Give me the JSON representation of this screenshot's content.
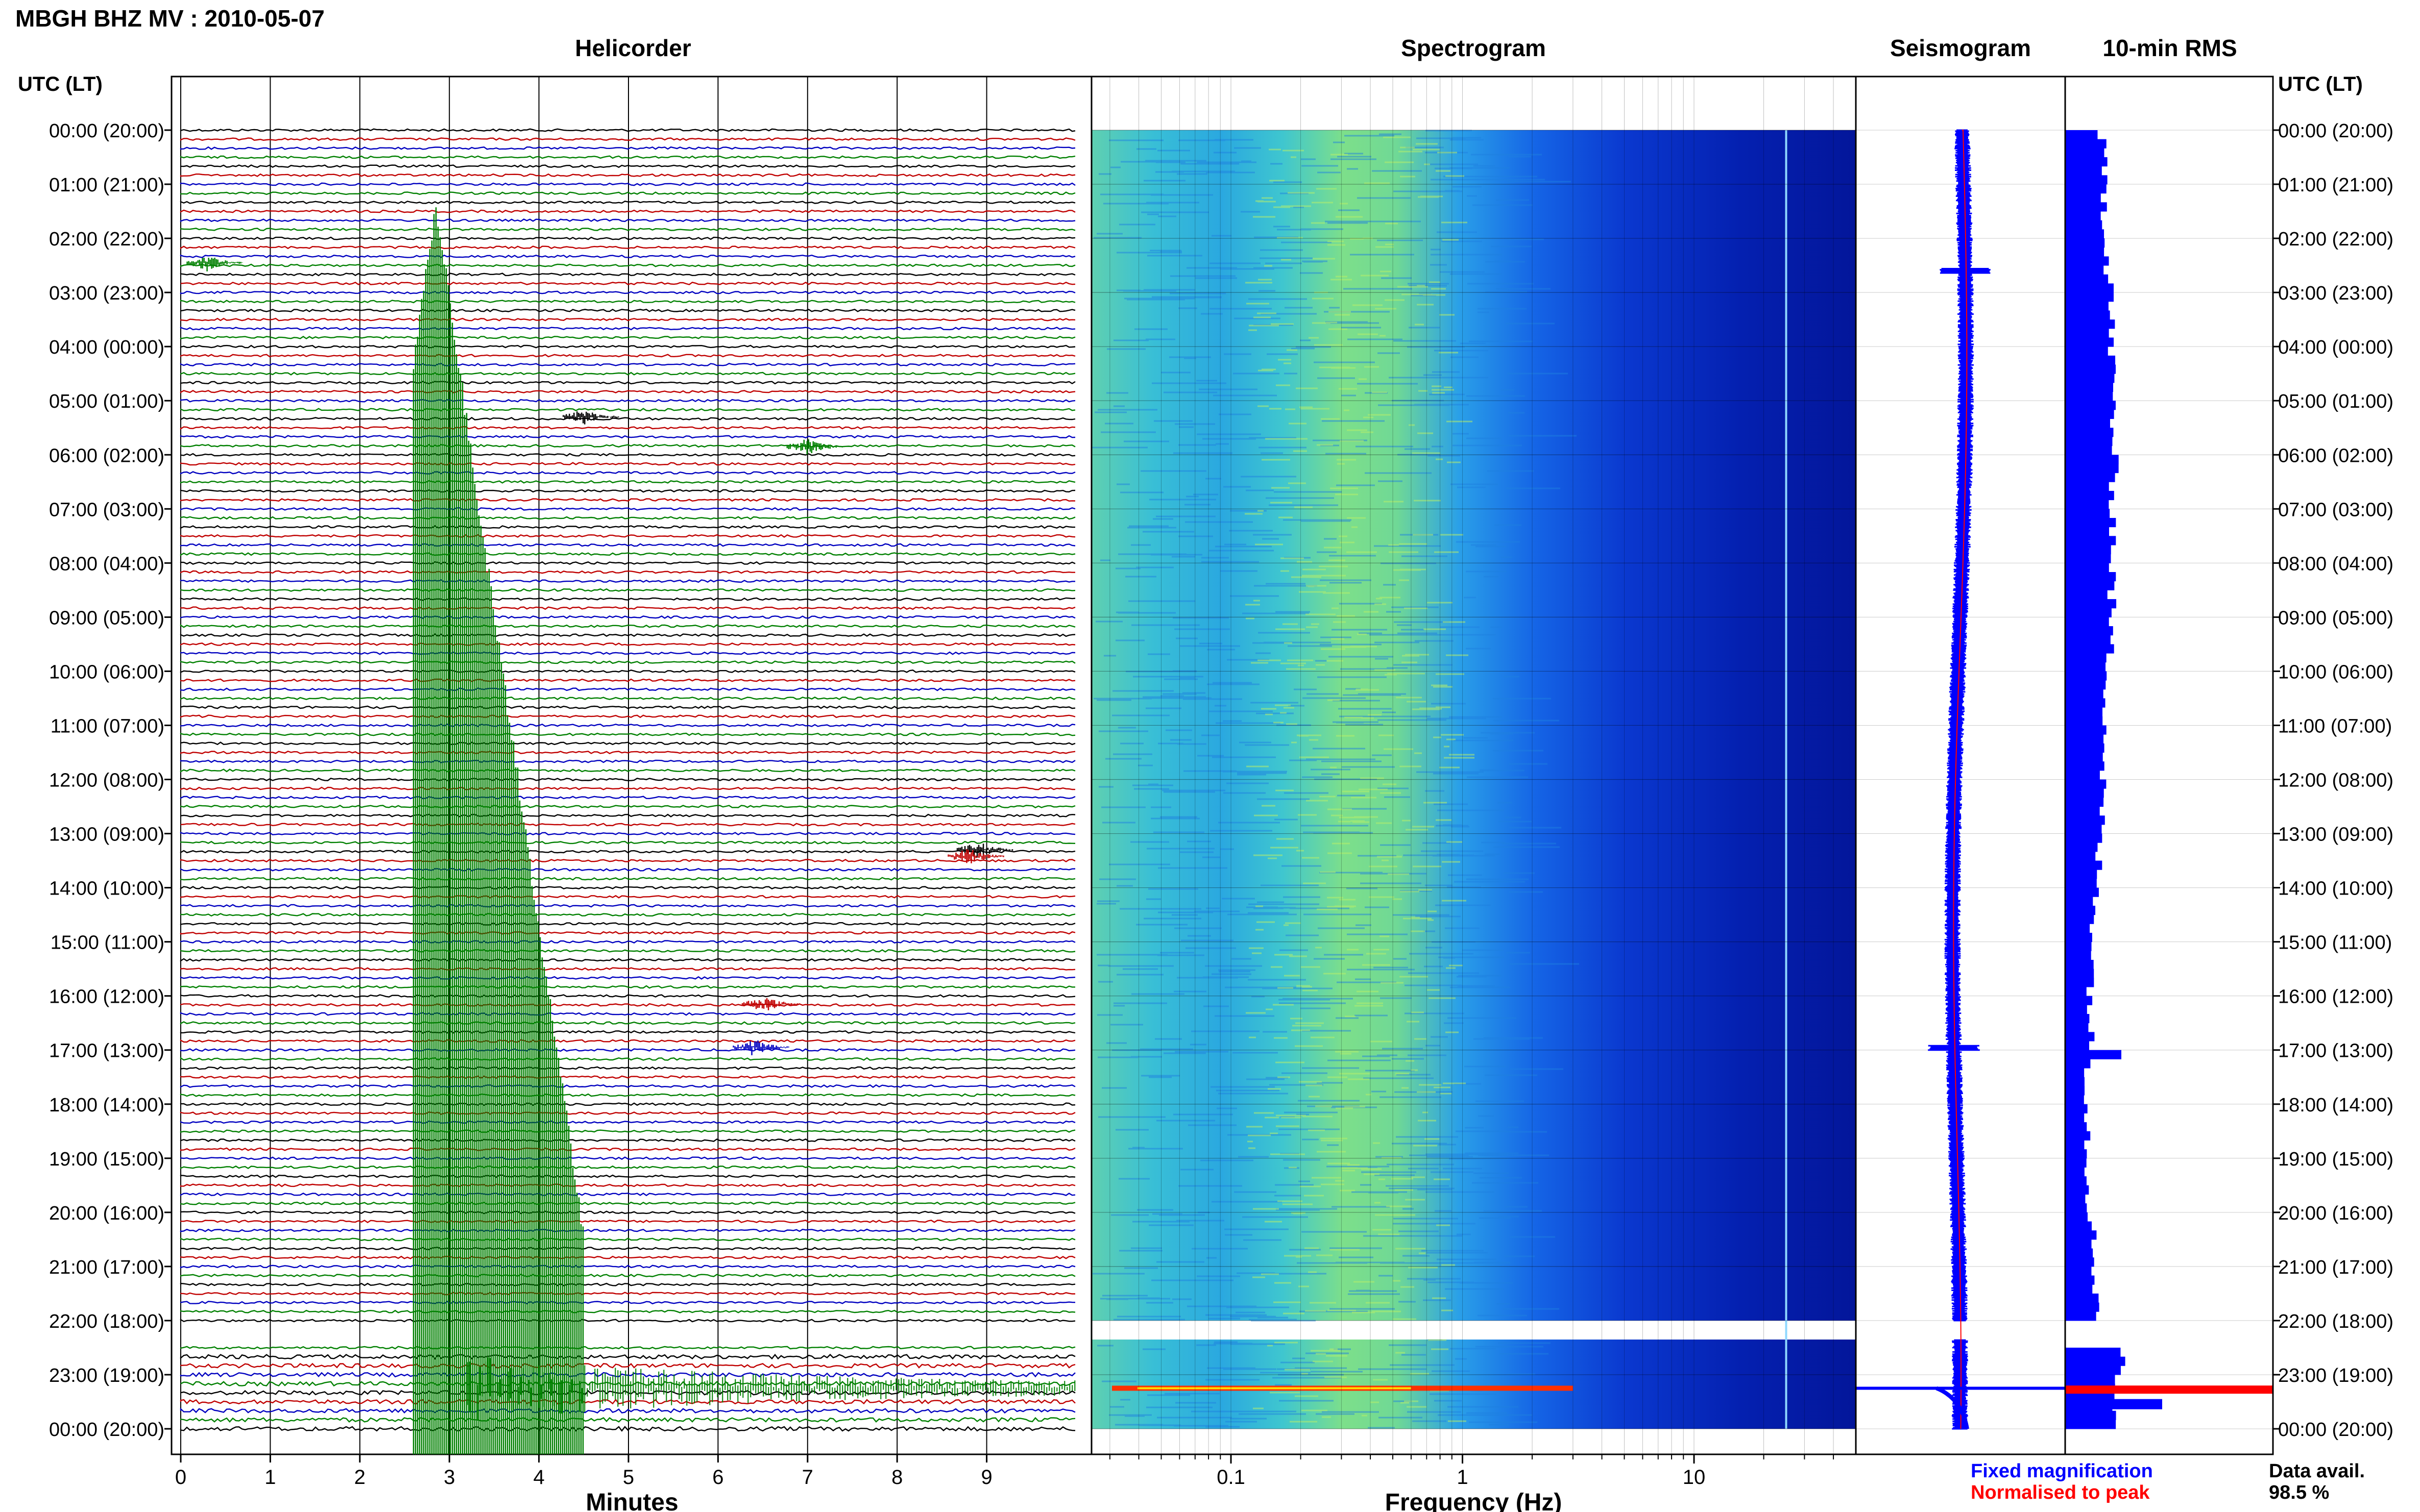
{
  "header": {
    "station_title": "MBGH BHZ MV : 2010-05-07",
    "time_axis_label": "UTC (LT)"
  },
  "panels": {
    "helicorder": "Helicorder",
    "spectrogram": "Spectrogram",
    "seismogram": "Seismogram",
    "rms": "10-min RMS"
  },
  "chart_data": {
    "type": "heatmap",
    "time_labels": [
      "00:00 (20:00)",
      "01:00 (21:00)",
      "02:00 (22:00)",
      "03:00 (23:00)",
      "04:00 (00:00)",
      "05:00 (01:00)",
      "06:00 (02:00)",
      "07:00 (03:00)",
      "08:00 (04:00)",
      "09:00 (05:00)",
      "10:00 (06:00)",
      "11:00 (07:00)",
      "12:00 (08:00)",
      "13:00 (09:00)",
      "14:00 (10:00)",
      "15:00 (11:00)",
      "16:00 (12:00)",
      "17:00 (13:00)",
      "18:00 (14:00)",
      "19:00 (15:00)",
      "20:00 (16:00)",
      "21:00 (17:00)",
      "22:00 (18:00)",
      "23:00 (19:00)",
      "00:00 (20:00)"
    ],
    "helicorder": {
      "xlabel": "Minutes",
      "x_ticks": [
        "0",
        "1",
        "2",
        "3",
        "4",
        "5",
        "6",
        "7",
        "8",
        "9"
      ],
      "xlim": [
        0,
        10
      ],
      "trace_colors": [
        "#000000",
        "#c00000",
        "#0000c0",
        "#008000"
      ],
      "traces_per_hour": 6,
      "large_event": {
        "start_hour": 14.9,
        "end_hour": 24,
        "minute": 2.6
      }
    },
    "spectrogram": {
      "xlabel": "Frequency (Hz)",
      "x_scale": "log",
      "xlim": [
        0.025,
        50
      ],
      "x_ticks": [
        "0.1",
        "1",
        "10"
      ],
      "x_tick_values": [
        0.1,
        1,
        10
      ],
      "data_gap_hours": [
        22.0,
        22.35
      ]
    },
    "seismogram": {
      "legend_fixed": "Fixed magnification",
      "legend_normalised": "Normalised to peak",
      "fixed_color": "#0000ff",
      "normalised_color": "#ff0000"
    },
    "rms": {
      "data_availability_label": "Data avail.",
      "data_availability": "98.5 %",
      "bar_color": "#0000ff",
      "peak_color": "#ff0000"
    }
  }
}
